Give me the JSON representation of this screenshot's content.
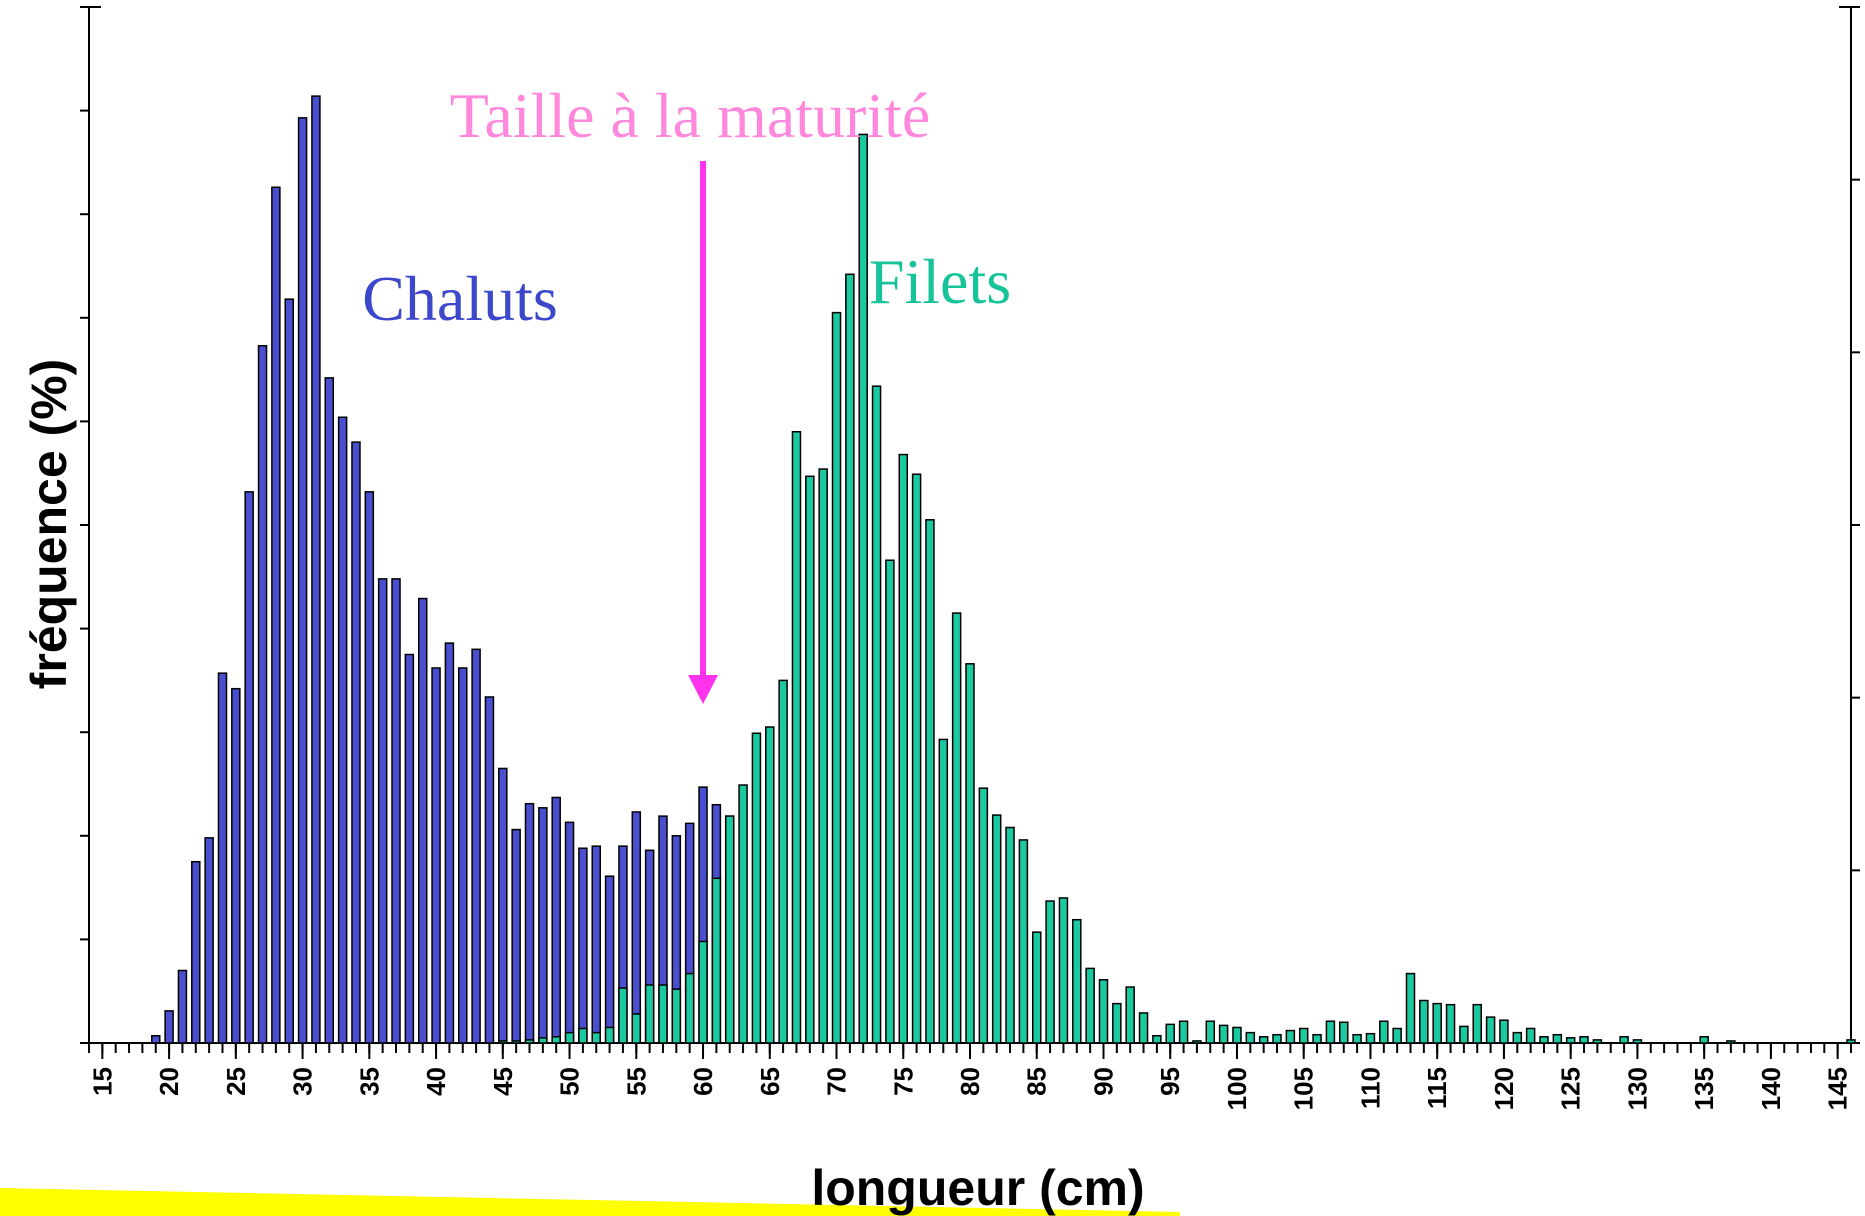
{
  "chart_data": {
    "type": "bar",
    "xlabel": "longueur (cm)",
    "ylabel": "fréquence (%)",
    "annotations": [
      {
        "text": "Taille à la maturité",
        "x": 60,
        "color": "#ff88dd"
      }
    ],
    "xlim": [
      14,
      146
    ],
    "xticks": [
      15,
      20,
      25,
      30,
      35,
      40,
      45,
      50,
      55,
      60,
      65,
      70,
      75,
      80,
      85,
      90,
      95,
      100,
      105,
      110,
      115,
      120,
      125,
      130,
      135,
      140,
      145
    ],
    "ylim": [
      0,
      10
    ],
    "yticks": [
      0,
      1,
      2,
      3,
      4,
      5,
      6,
      7,
      8,
      9,
      10
    ],
    "y2lim": [
      0,
      6
    ],
    "y2ticks": [
      0,
      1,
      2,
      3,
      4,
      5,
      6
    ],
    "series": [
      {
        "name": "Chaluts",
        "color": "#4a4fd0",
        "label_color": "#3d47cc",
        "x": [
          19,
          20,
          21,
          22,
          23,
          24,
          25,
          26,
          27,
          28,
          29,
          30,
          31,
          32,
          33,
          34,
          35,
          36,
          37,
          38,
          39,
          40,
          41,
          42,
          43,
          44,
          45,
          46,
          47,
          48,
          49,
          50,
          51,
          52,
          53,
          54,
          55,
          56,
          57,
          58,
          59,
          60,
          61,
          62
        ],
        "values": [
          0.07,
          0.31,
          0.7,
          1.75,
          1.98,
          3.57,
          3.42,
          5.32,
          6.73,
          8.26,
          7.18,
          8.93,
          9.14,
          6.42,
          6.04,
          5.8,
          5.32,
          4.48,
          4.48,
          3.75,
          4.29,
          3.62,
          3.86,
          3.62,
          3.8,
          3.34,
          2.65,
          2.06,
          2.31,
          2.27,
          2.37,
          2.13,
          1.88,
          1.9,
          1.61,
          1.9,
          2.23,
          1.86,
          2.19,
          2,
          2.12,
          2.47,
          2.3,
          2.19
        ]
      },
      {
        "name": "Filets",
        "color": "#1bc9a0",
        "label_color": "#17c49a",
        "x": [
          45,
          46,
          47,
          48,
          49,
          50,
          51,
          52,
          53,
          54,
          55,
          56,
          57,
          58,
          59,
          60,
          61,
          62,
          63,
          64,
          65,
          66,
          67,
          68,
          69,
          70,
          71,
          72,
          73,
          74,
          75,
          76,
          77,
          78,
          79,
          80,
          81,
          82,
          83,
          84,
          85,
          86,
          87,
          88,
          89,
          90,
          91,
          92,
          93,
          94,
          95,
          96,
          97,
          98,
          99,
          100,
          101,
          102,
          103,
          104,
          105,
          106,
          107,
          108,
          109,
          110,
          111,
          112,
          113,
          114,
          115,
          116,
          117,
          118,
          119,
          120,
          121,
          122,
          123,
          124,
          125,
          126,
          127,
          129,
          130,
          135,
          137,
          146
        ],
        "values": [
          0.02,
          0.02,
          0.03,
          0.05,
          0.06,
          0.1,
          0.14,
          0.1,
          0.15,
          0.53,
          0.28,
          0.56,
          0.56,
          0.52,
          0.67,
          0.98,
          1.59,
          2.19,
          2.49,
          2.99,
          3.05,
          3.5,
          5.9,
          5.47,
          5.54,
          7.05,
          7.42,
          8.77,
          6.34,
          4.66,
          5.68,
          5.49,
          5.05,
          2.93,
          4.15,
          3.66,
          2.46,
          2.2,
          2.08,
          1.96,
          1.07,
          1.37,
          1.4,
          1.19,
          0.72,
          0.61,
          0.38,
          0.54,
          0.29,
          0.07,
          0.18,
          0.21,
          0.02,
          0.21,
          0.17,
          0.15,
          0.1,
          0.06,
          0.08,
          0.12,
          0.14,
          0.08,
          0.21,
          0.2,
          0.08,
          0.09,
          0.21,
          0.14,
          0.67,
          0.41,
          0.38,
          0.37,
          0.16,
          0.37,
          0.25,
          0.22,
          0.1,
          0.14,
          0.06,
          0.08,
          0.05,
          0.06,
          0.03,
          0.06,
          0.03,
          0.06,
          0.02,
          0.03
        ]
      }
    ]
  }
}
